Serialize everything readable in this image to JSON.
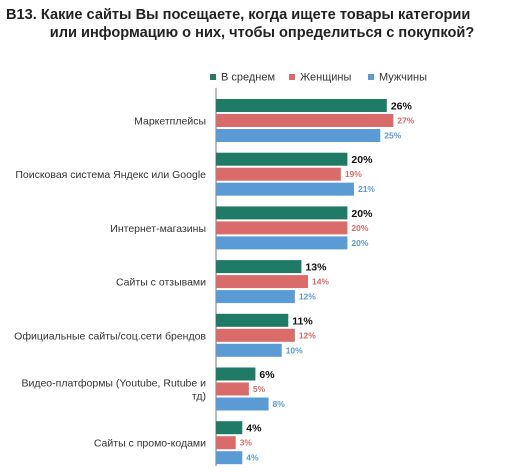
{
  "title": {
    "line1": "B13. Какие сайты Вы посещаете, когда ищете товары категории",
    "line2": "или информацию о них, чтобы определиться с покупкой?"
  },
  "colors": {
    "avg": "#1f7a66",
    "women": "#d96b6b",
    "men": "#5b9bd5",
    "axis": "#7a7a7a"
  },
  "chart_data": {
    "type": "bar",
    "orientation": "horizontal",
    "legend_position": "top",
    "categories": [
      [
        "Маркетплейсы"
      ],
      [
        "Поисковая система Яндекс или Google"
      ],
      [
        "Интернет-магазины"
      ],
      [
        "Сайты с отзывами"
      ],
      [
        "Официальные сайты/соц.сети брендов"
      ],
      [
        "Видео-платформы (Youtube, Rutube и",
        "тд)"
      ],
      [
        "Сайты с промо-кодами"
      ]
    ],
    "series": [
      {
        "name": "В среднем",
        "color": "#1f7a66",
        "values": [
          26,
          20,
          20,
          13,
          11,
          6,
          4
        ]
      },
      {
        "name": "Женщины",
        "color": "#d96b6b",
        "values": [
          27,
          19,
          20,
          14,
          12,
          5,
          3
        ]
      },
      {
        "name": "Мужчины",
        "color": "#5b9bd5",
        "values": [
          25,
          21,
          20,
          12,
          10,
          8,
          4
        ]
      }
    ],
    "unit": "%"
  }
}
